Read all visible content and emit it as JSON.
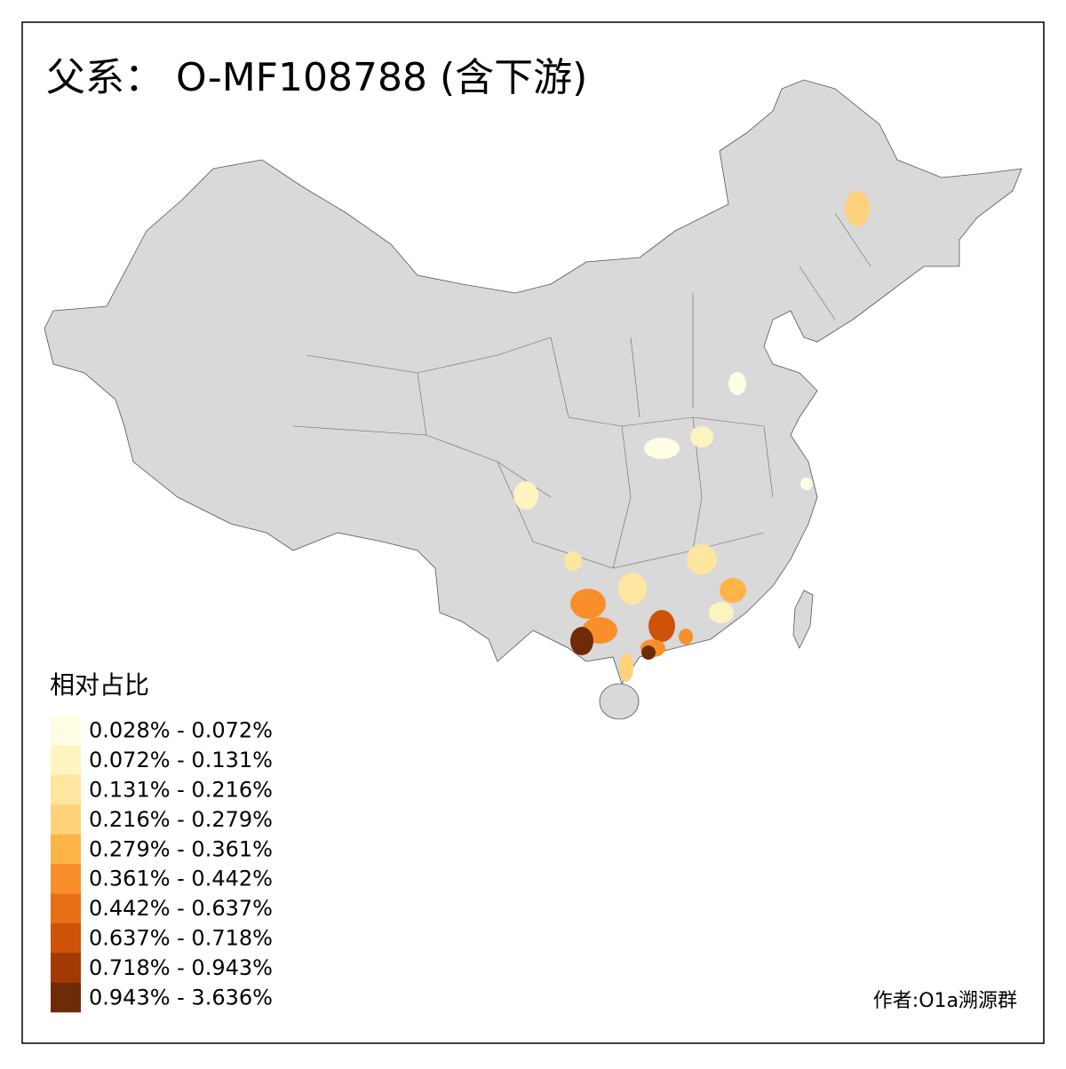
{
  "title": "父系： O-MF108788 (含下游)",
  "legend": {
    "title": "相对占比",
    "items": [
      {
        "label": "0.028% - 0.072%",
        "color": "#fffde3"
      },
      {
        "label": "0.072% - 0.131%",
        "color": "#fff4c0"
      },
      {
        "label": "0.131% - 0.216%",
        "color": "#fee6a0"
      },
      {
        "label": "0.216% - 0.279%",
        "color": "#fed27a"
      },
      {
        "label": "0.279% - 0.361%",
        "color": "#fdb446"
      },
      {
        "label": "0.361% - 0.442%",
        "color": "#f98f2a"
      },
      {
        "label": "0.442% - 0.637%",
        "color": "#e96f16"
      },
      {
        "label": "0.637% - 0.718%",
        "color": "#ce5207"
      },
      {
        "label": "0.718% - 0.943%",
        "color": "#a33a04"
      },
      {
        "label": "0.943% - 3.636%",
        "color": "#6f2a08"
      }
    ]
  },
  "credit": "作者:O1a溯源群"
}
